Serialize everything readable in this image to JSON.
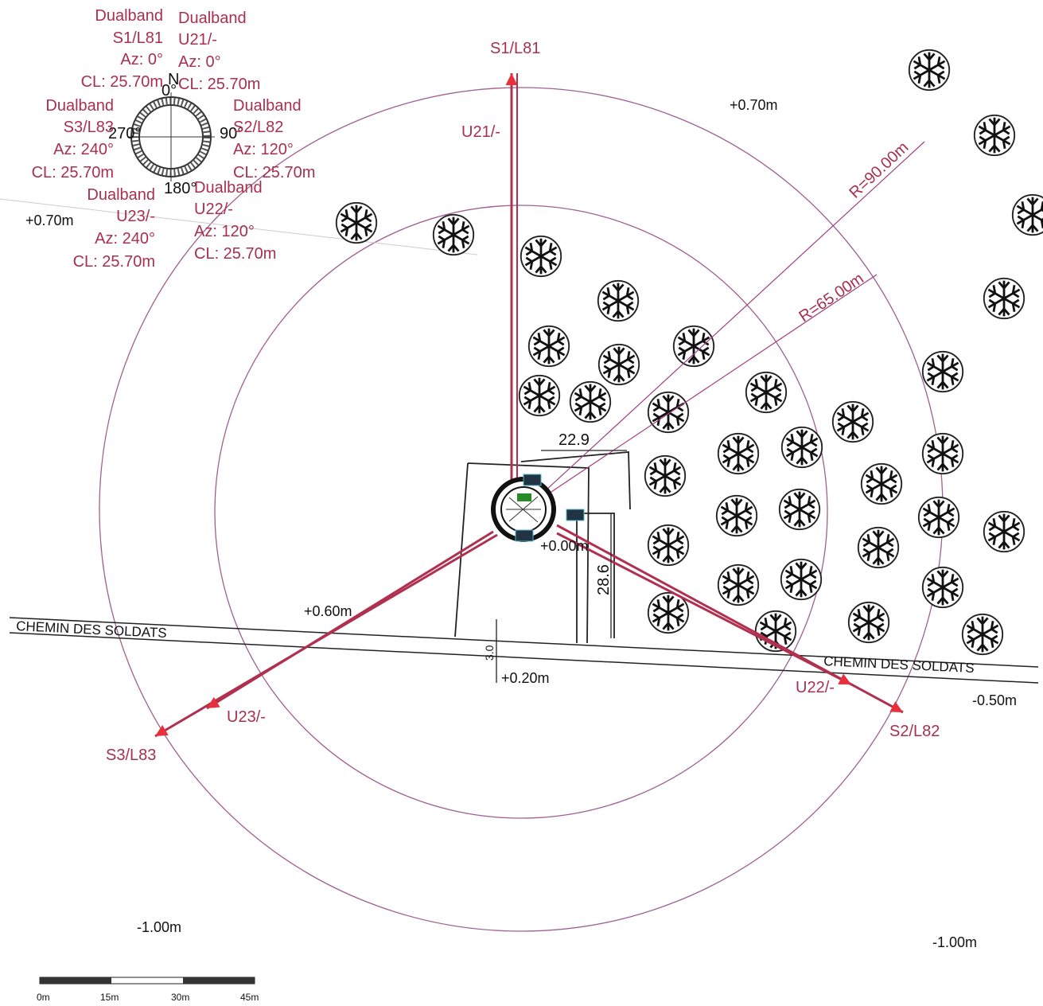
{
  "legend": [
    {
      "band": "Dualband",
      "sector": "S1/L81",
      "azimuth": "Az: 0°",
      "cl": "CL: 25.70m"
    },
    {
      "band": "Dualband",
      "sector": "U21/-",
      "azimuth": "Az: 0°",
      "cl": "CL: 25.70m"
    },
    {
      "band": "Dualband",
      "sector": "S3/L83",
      "azimuth": "Az: 240°",
      "cl": "CL: 25.70m"
    },
    {
      "band": "Dualband",
      "sector": "S2/L82",
      "azimuth": "Az: 120°",
      "cl": "CL: 25.70m"
    },
    {
      "band": "Dualband",
      "sector": "U23/-",
      "azimuth": "Az: 240°",
      "cl": "CL: 25.70m"
    },
    {
      "band": "Dualband",
      "sector": "U22/-",
      "azimuth": "Az: 120°",
      "cl": "CL: 25.70m"
    }
  ],
  "compass": {
    "north": "N",
    "deg_0": "0°",
    "deg_90": "90°",
    "deg_180": "180°",
    "deg_270": "270°"
  },
  "arrows": [
    "S1/L81",
    "U21/-",
    "S2/L82",
    "U22/-",
    "S3/L83",
    "U23/-"
  ],
  "radii": [
    "R=90.00m",
    "R=65.00m"
  ],
  "elevations": [
    "+0.70m",
    "+0.70m",
    "+0.60m",
    "+0.00m",
    "+0.20m",
    "-0.50m",
    "-1.00m",
    "-1.00m"
  ],
  "dimensions": [
    "22.9",
    "28.6",
    "3.0"
  ],
  "road": [
    "CHEMIN DES SOLDATS",
    "CHEMIN DES SOLDATS"
  ],
  "scale": [
    "0m",
    "15m",
    "30m",
    "45m"
  ]
}
